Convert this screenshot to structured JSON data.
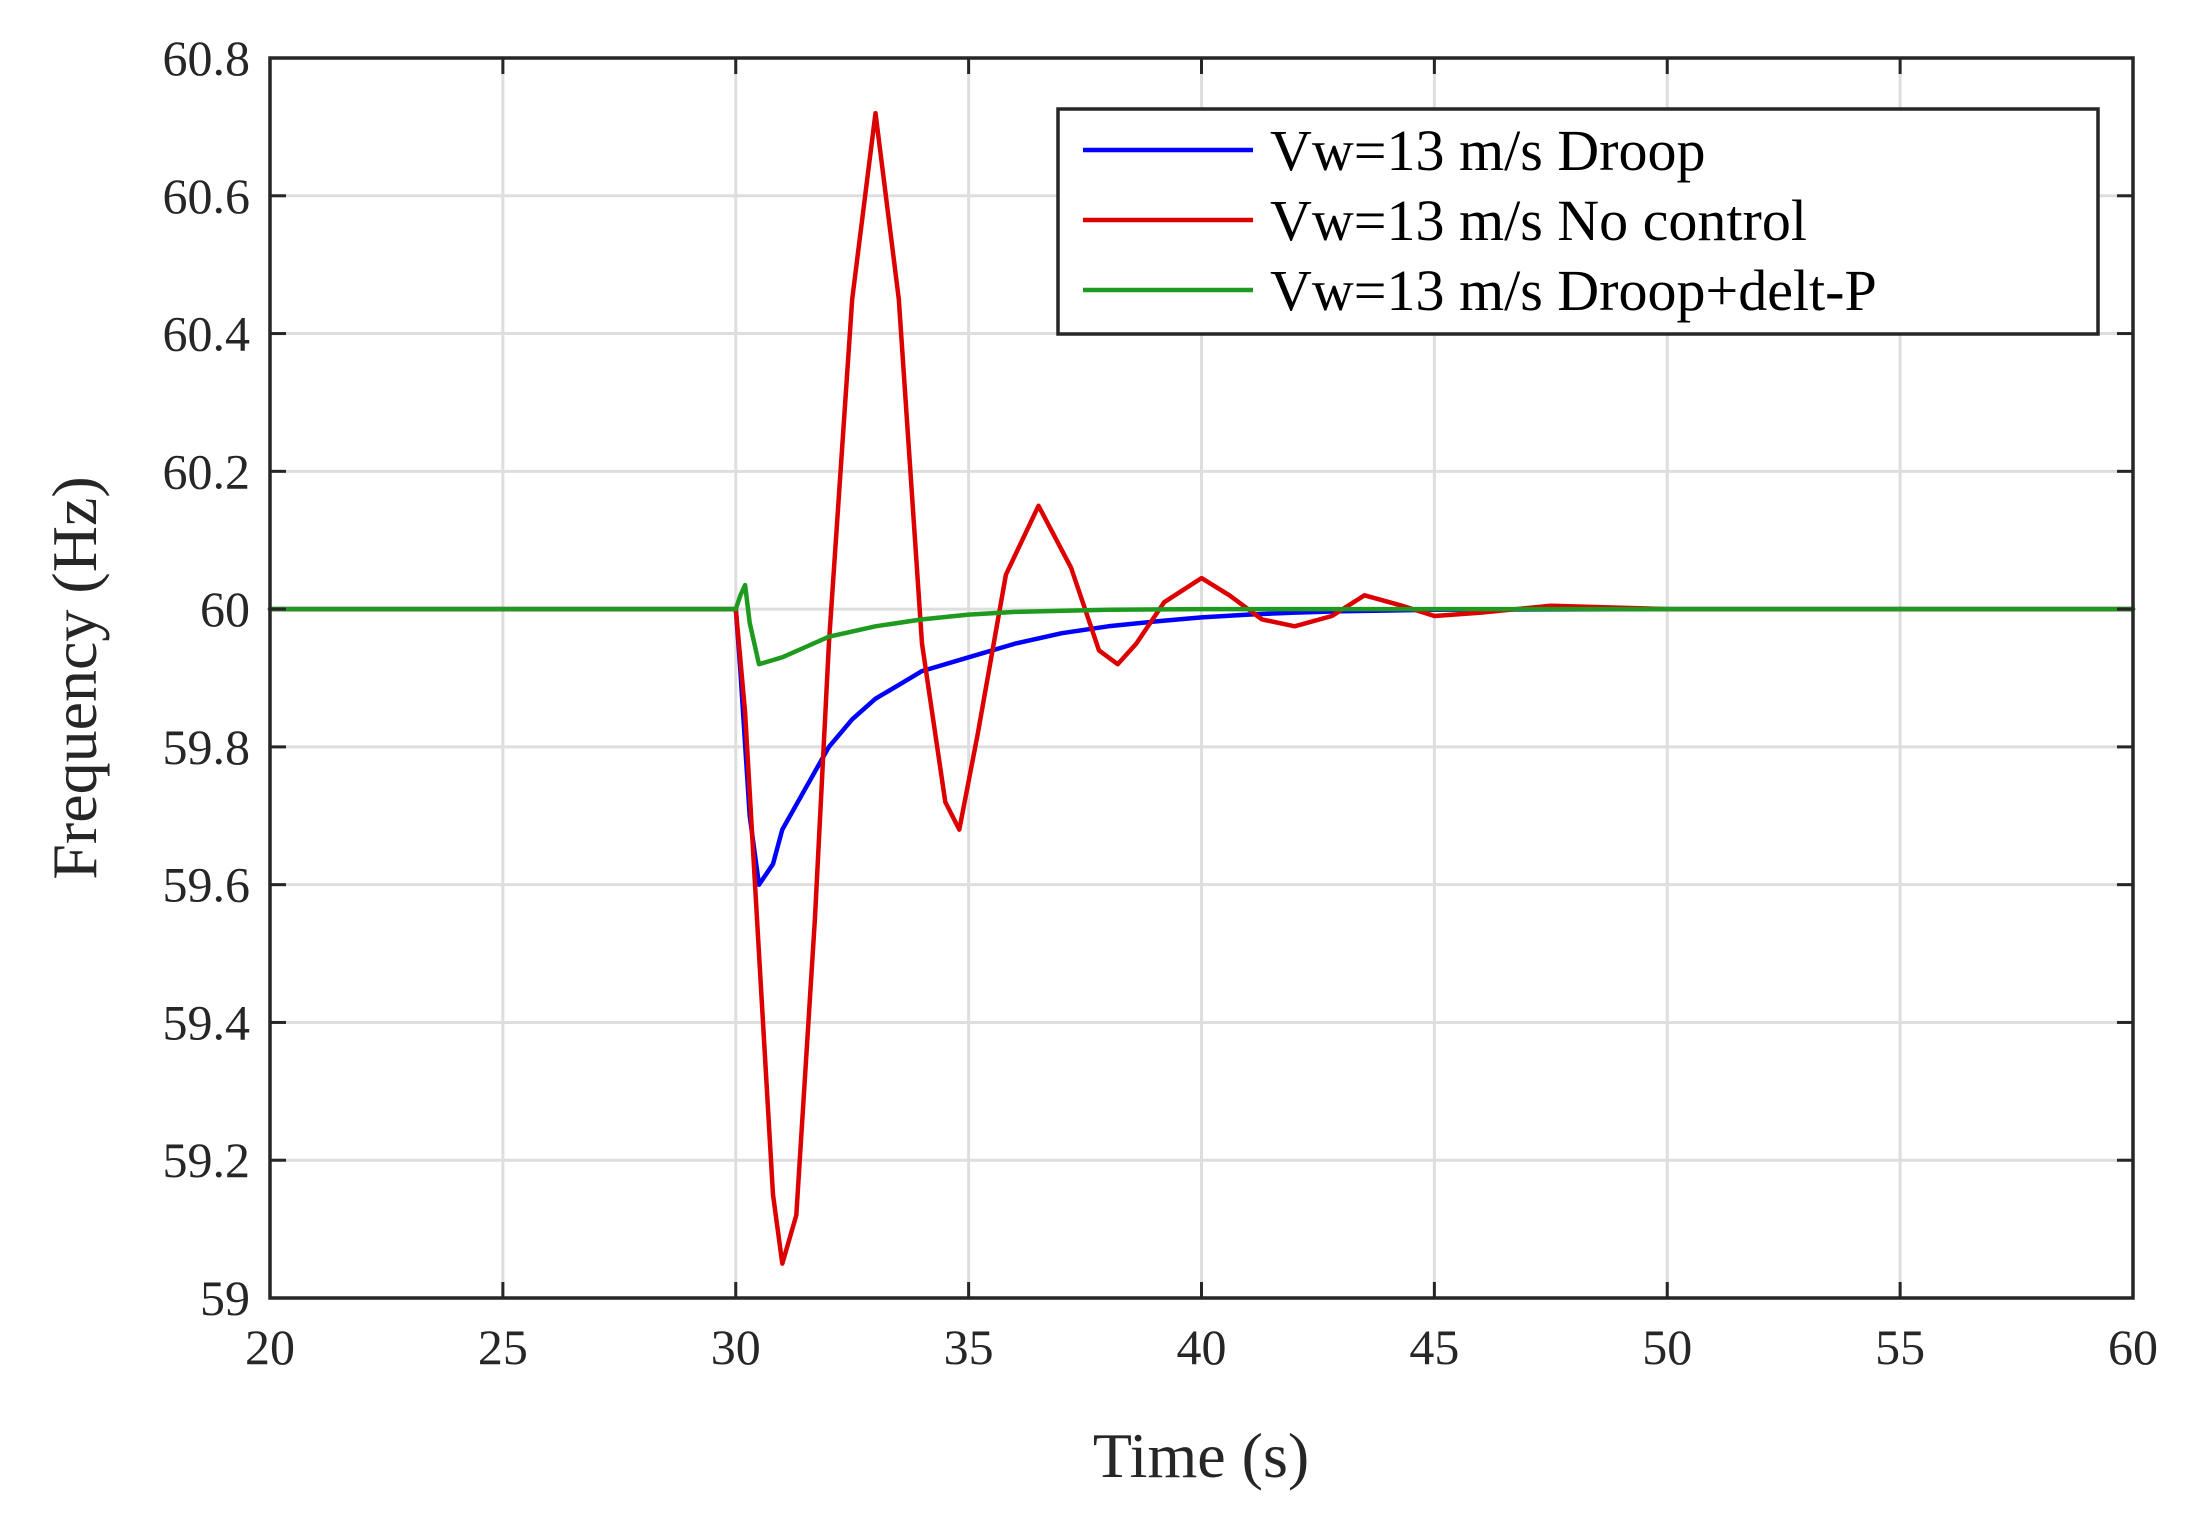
{
  "chart_data": {
    "type": "line",
    "title": "",
    "xlabel": "Time (s)",
    "ylabel": "Frequency (Hz)",
    "xlim": [
      20,
      60
    ],
    "ylim": [
      59,
      60.8
    ],
    "grid": true,
    "legend_position": "top-right",
    "x_ticks": [
      20,
      25,
      30,
      35,
      40,
      45,
      50,
      55,
      60
    ],
    "y_ticks": [
      59,
      59.2,
      59.4,
      59.6,
      59.8,
      60,
      60.2,
      60.4,
      60.6,
      60.8
    ],
    "x_tick_labels": [
      "20",
      "25",
      "30",
      "35",
      "40",
      "45",
      "50",
      "55",
      "60"
    ],
    "y_tick_labels": [
      "59",
      "59.2",
      "59.4",
      "59.6",
      "59.8",
      "60",
      "60.2",
      "60.4",
      "60.6",
      "60.8"
    ],
    "series": [
      {
        "name": "Vw=13 m/s Droop",
        "color": "#0000ff",
        "x": [
          20,
          30,
          30.1,
          30.3,
          30.5,
          30.8,
          31.0,
          31.5,
          32.0,
          32.5,
          33.0,
          33.5,
          34.0,
          35.0,
          36.0,
          37.0,
          38.0,
          39.0,
          40.0,
          41.0,
          42.0,
          43.0,
          45.0,
          50.0,
          55.0,
          60.0
        ],
        "y": [
          60,
          60,
          59.91,
          59.7,
          59.6,
          59.63,
          59.68,
          59.74,
          59.8,
          59.84,
          59.87,
          59.89,
          59.91,
          59.93,
          59.95,
          59.965,
          59.975,
          59.982,
          59.988,
          59.992,
          59.995,
          59.997,
          59.999,
          60.0,
          60.0,
          60.0
        ]
      },
      {
        "name": "Vw=13 m/s No control",
        "color": "#dd0000",
        "x": [
          20,
          30,
          30.2,
          30.5,
          30.8,
          31.0,
          31.3,
          31.7,
          32.0,
          32.5,
          33.0,
          33.5,
          34.0,
          34.5,
          34.8,
          35.2,
          35.8,
          36.5,
          37.2,
          37.8,
          38.2,
          38.6,
          39.2,
          40.0,
          40.6,
          41.3,
          42.0,
          42.8,
          43.5,
          44.3,
          45.0,
          46.0,
          47.5,
          50.0,
          55.0,
          60.0
        ],
        "y": [
          60,
          60,
          59.85,
          59.5,
          59.15,
          59.05,
          59.12,
          59.55,
          59.95,
          60.45,
          60.72,
          60.45,
          59.95,
          59.72,
          59.68,
          59.82,
          60.05,
          60.15,
          60.06,
          59.94,
          59.92,
          59.95,
          60.01,
          60.045,
          60.02,
          59.985,
          59.975,
          59.99,
          60.02,
          60.005,
          59.99,
          59.995,
          60.005,
          60.0,
          60.0,
          60.0
        ]
      },
      {
        "name": "Vw=13 m/s Droop+delt-P",
        "color": "#1e9a1e",
        "x": [
          20,
          30,
          30.1,
          30.2,
          30.3,
          30.5,
          31.0,
          31.5,
          32.0,
          33.0,
          34.0,
          35.0,
          36.0,
          38.0,
          40.0,
          45.0,
          50.0,
          55.0,
          60.0
        ],
        "y": [
          60,
          60,
          60.02,
          60.035,
          59.98,
          59.92,
          59.93,
          59.945,
          59.96,
          59.975,
          59.985,
          59.992,
          59.996,
          59.999,
          60.0,
          60.0,
          60.0,
          60.0,
          60.0
        ]
      }
    ]
  }
}
